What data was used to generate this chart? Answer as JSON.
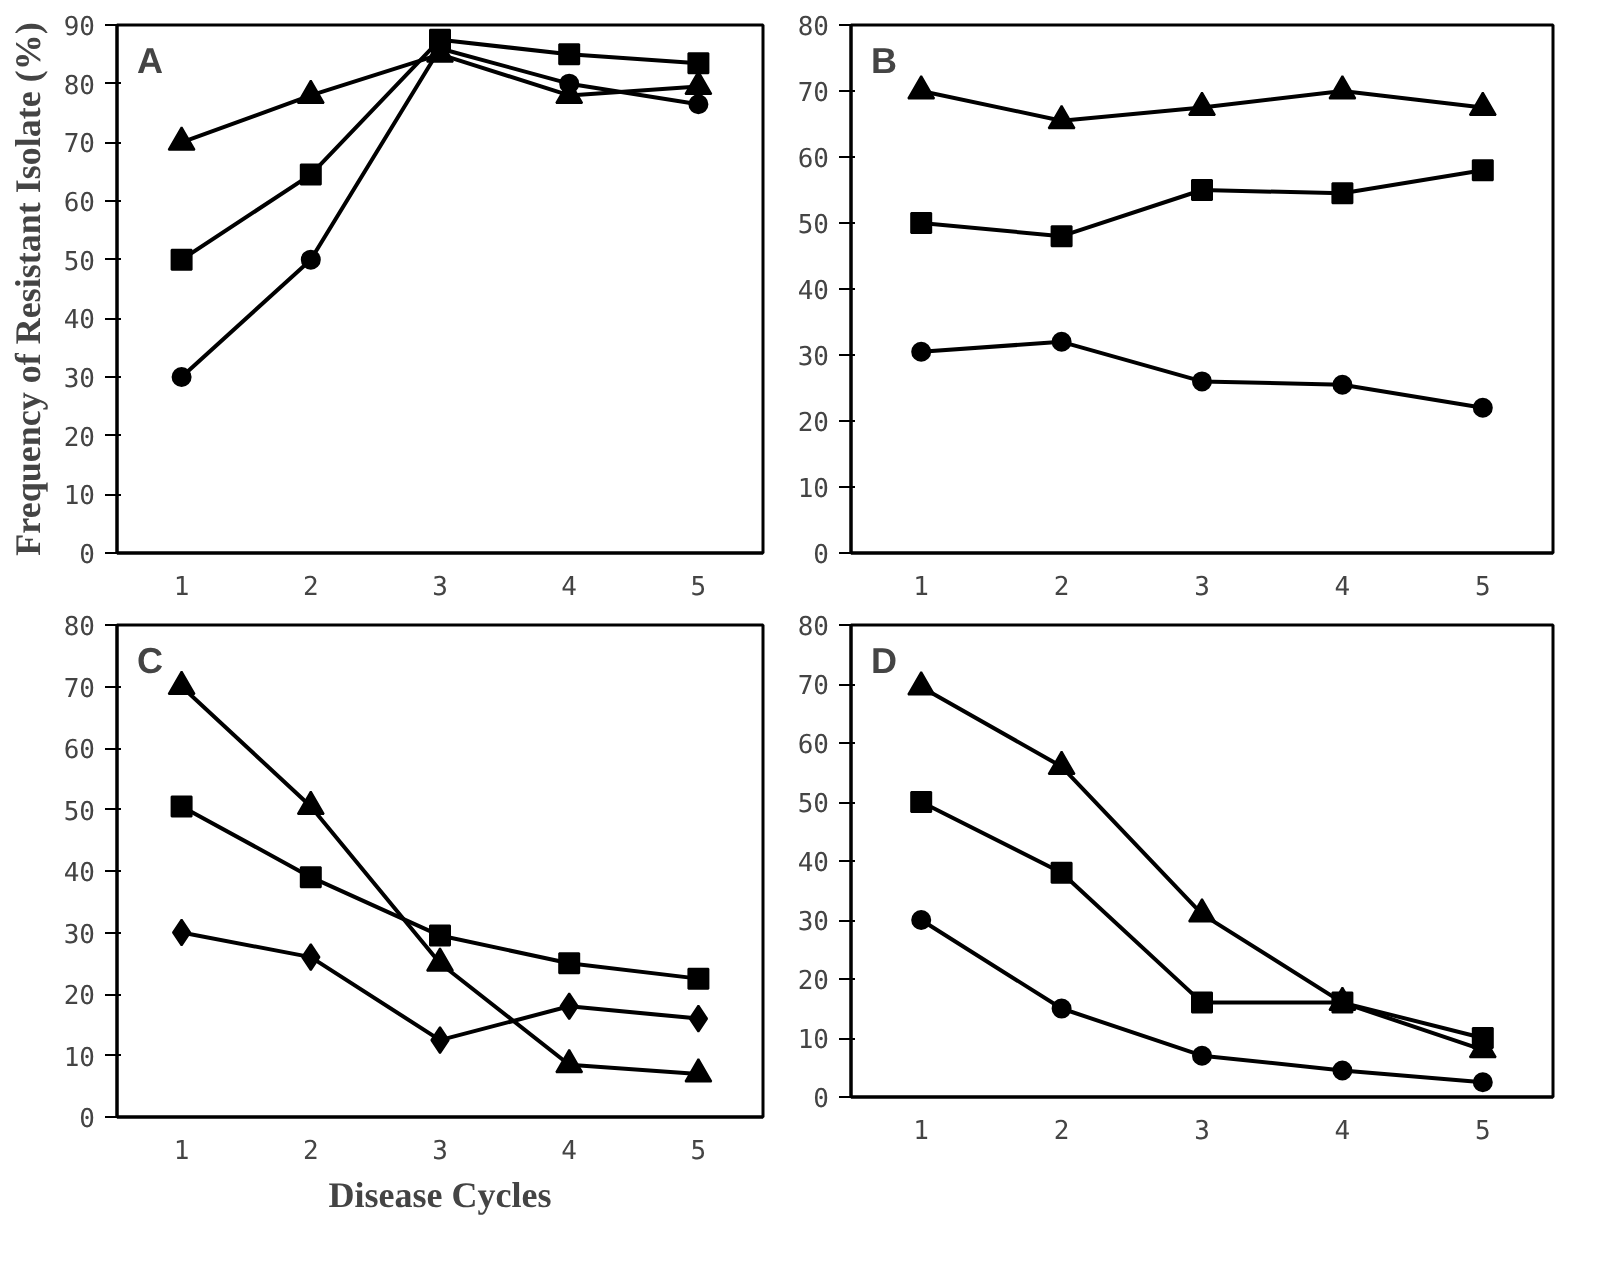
{
  "chart_data": [
    {
      "type": "line",
      "title": "A",
      "ylabel": "Frequency of Resistant Isolate (%)",
      "categories": [
        "1",
        "2",
        "3",
        "4",
        "5"
      ],
      "ylim": [
        0,
        90
      ],
      "yticks": [
        0,
        10,
        20,
        30,
        40,
        50,
        60,
        70,
        80,
        90
      ],
      "grid": false,
      "line_style": "solid",
      "series": [
        {
          "color": "#000000",
          "marker": "triangle",
          "values": [
            70,
            78,
            85,
            78,
            79.5
          ]
        },
        {
          "color": "#000000",
          "marker": "square",
          "values": [
            50,
            64.5,
            87.5,
            85,
            83.5
          ]
        },
        {
          "color": "#000000",
          "marker": "circle",
          "values": [
            30,
            50,
            86,
            80,
            76.5
          ]
        }
      ]
    },
    {
      "type": "line",
      "title": "B",
      "categories": [
        "1",
        "2",
        "3",
        "4",
        "5"
      ],
      "ylim": [
        0,
        80
      ],
      "yticks": [
        0,
        10,
        20,
        30,
        40,
        50,
        60,
        70,
        80
      ],
      "grid": false,
      "line_style": "solid",
      "series": [
        {
          "color": "#000000",
          "marker": "triangle",
          "values": [
            70,
            65.5,
            67.5,
            70,
            67.5
          ]
        },
        {
          "color": "#000000",
          "marker": "square",
          "values": [
            50,
            48,
            55,
            54.5,
            58
          ]
        },
        {
          "color": "#000000",
          "marker": "circle",
          "values": [
            30.5,
            32,
            26,
            25.5,
            22
          ]
        }
      ]
    },
    {
      "type": "line",
      "title": "C",
      "xlabel": "Disease Cycles",
      "categories": [
        "1",
        "2",
        "3",
        "4",
        "5"
      ],
      "ylim": [
        0,
        80
      ],
      "yticks": [
        0,
        10,
        20,
        30,
        40,
        50,
        60,
        70,
        80
      ],
      "grid": false,
      "line_style": "solid",
      "series": [
        {
          "color": "#000000",
          "marker": "triangle",
          "values": [
            70,
            50.5,
            25,
            8.5,
            7
          ]
        },
        {
          "color": "#000000",
          "marker": "square",
          "values": [
            50.5,
            39,
            29.5,
            25,
            22.5
          ]
        },
        {
          "color": "#000000",
          "marker": "diamond",
          "values": [
            30,
            26,
            12.5,
            18,
            16
          ]
        }
      ]
    },
    {
      "type": "line",
      "title": "D",
      "categories": [
        "1",
        "2",
        "3",
        "4",
        "5"
      ],
      "ylim": [
        0,
        80
      ],
      "yticks": [
        0,
        10,
        20,
        30,
        40,
        50,
        60,
        70,
        80
      ],
      "grid": false,
      "line_style": "solid",
      "series": [
        {
          "color": "#000000",
          "marker": "triangle",
          "values": [
            69.5,
            56,
            31,
            16,
            8
          ]
        },
        {
          "color": "#000000",
          "marker": "square",
          "values": [
            50,
            38,
            16,
            16,
            10
          ]
        },
        {
          "color": "#000000",
          "marker": "circle",
          "values": [
            30,
            15,
            7,
            4.5,
            2.5
          ]
        }
      ]
    }
  ]
}
